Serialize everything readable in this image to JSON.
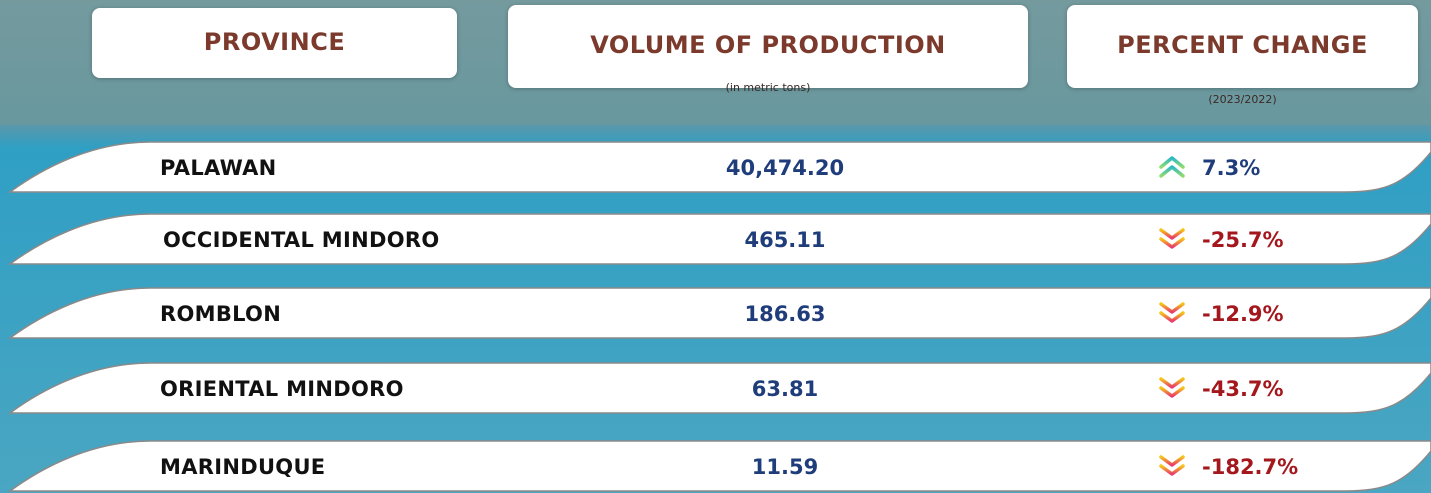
{
  "header": {
    "columns": [
      {
        "title": "PROVINCE"
      },
      {
        "title": "VOLUME OF PRODUCTION",
        "subtitle": "(in metric tons)"
      },
      {
        "title": "PERCENT CHANGE",
        "subtitle": "(2023/2022)"
      }
    ]
  },
  "table": {
    "rows": [
      [
        "PALAWAN",
        "40,474.20",
        "7.3%"
      ],
      [
        "OCCIDENTAL MINDORO",
        "465.11",
        "-25.7%"
      ],
      [
        "ROMBLON",
        "186.63",
        "-12.9%"
      ],
      [
        "ORIENTAL MINDORO",
        "63.81",
        "-43.7%"
      ],
      [
        "MARINDUQUE",
        "11.59",
        "-182.7%"
      ]
    ]
  }
}
